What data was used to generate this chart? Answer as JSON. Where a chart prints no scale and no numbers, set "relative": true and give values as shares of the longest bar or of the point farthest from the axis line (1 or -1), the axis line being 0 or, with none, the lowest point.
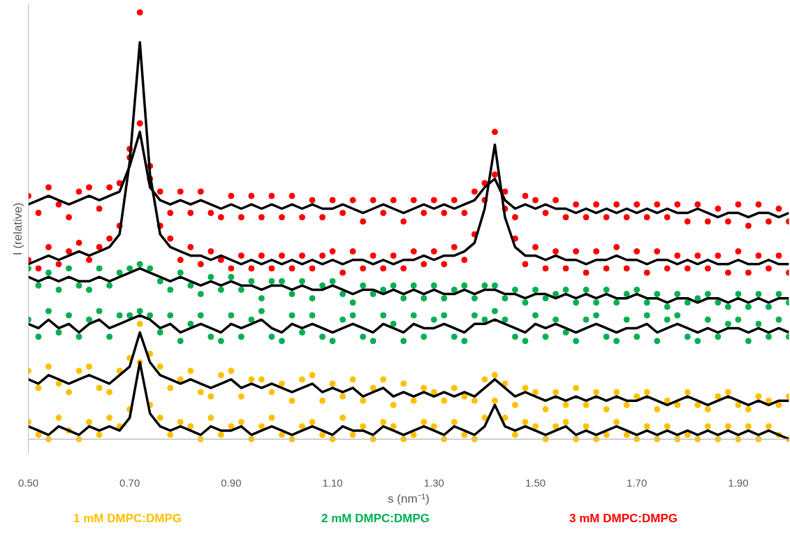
{
  "chart_data": {
    "type": "scatter",
    "xlabel": "s (nm⁻¹)",
    "ylabel": "I (relative)",
    "relative": true,
    "grid": false,
    "legend": "bottom",
    "xlim": [
      0.5,
      2.0
    ],
    "xticks": [
      {
        "value": 0.5,
        "label": "0.50"
      },
      {
        "value": 0.7,
        "label": "0.70"
      },
      {
        "value": 0.9,
        "label": "0.90"
      },
      {
        "value": 1.1,
        "label": "1.10"
      },
      {
        "value": 1.3,
        "label": "1.30"
      },
      {
        "value": 1.5,
        "label": "1.50"
      },
      {
        "value": 1.7,
        "label": "1.70"
      },
      {
        "value": 1.9,
        "label": "1.90"
      }
    ],
    "x": [
      0.5,
      0.52,
      0.54,
      0.56,
      0.58,
      0.6,
      0.62,
      0.64,
      0.66,
      0.68,
      0.7,
      0.72,
      0.74,
      0.76,
      0.78,
      0.8,
      0.82,
      0.84,
      0.86,
      0.88,
      0.9,
      0.92,
      0.94,
      0.96,
      0.98,
      1.0,
      1.02,
      1.04,
      1.06,
      1.08,
      1.1,
      1.12,
      1.14,
      1.16,
      1.18,
      1.2,
      1.22,
      1.24,
      1.26,
      1.28,
      1.3,
      1.32,
      1.34,
      1.36,
      1.38,
      1.4,
      1.42,
      1.44,
      1.46,
      1.48,
      1.5,
      1.52,
      1.54,
      1.56,
      1.58,
      1.6,
      1.62,
      1.64,
      1.66,
      1.68,
      1.7,
      1.72,
      1.74,
      1.76,
      1.78,
      1.8,
      1.82,
      1.84,
      1.86,
      1.88,
      1.9,
      1.92,
      1.94,
      1.96,
      1.98,
      2.0
    ],
    "series": [
      {
        "marker": "circle",
        "name": "1 mM DMPC:DMPG",
        "color": "#ffc000",
        "values": [
          0.16,
          0.12,
          0.17,
          0.13,
          0.11,
          0.16,
          0.17,
          0.12,
          0.11,
          0.16,
          0.19,
          0.27,
          0.2,
          0.17,
          0.12,
          0.14,
          0.16,
          0.11,
          0.1,
          0.15,
          0.16,
          0.1,
          0.14,
          0.14,
          0.11,
          0.13,
          0.09,
          0.14,
          0.15,
          0.09,
          0.13,
          0.1,
          0.14,
          0.09,
          0.12,
          0.14,
          0.08,
          0.13,
          0.09,
          0.12,
          0.11,
          0.09,
          0.12,
          0.1,
          0.09,
          0.14,
          0.15,
          0.13,
          0.08,
          0.12,
          0.11,
          0.07,
          0.11,
          0.08,
          0.12,
          0.08,
          0.11,
          0.07,
          0.11,
          0.08,
          0.1,
          0.11,
          0.07,
          0.09,
          0.08,
          0.11,
          0.08,
          0.07,
          0.1,
          0.11,
          0.08,
          0.07,
          0.1,
          0.09,
          0.08,
          0.1
        ]
      },
      {
        "marker": "circle",
        "color": "#ffc000",
        "values": [
          0.04,
          0.01,
          0.0,
          0.05,
          0.02,
          0.0,
          0.04,
          0.01,
          0.05,
          0.03,
          0.07,
          0.18,
          0.08,
          0.05,
          0.01,
          0.04,
          0.03,
          0.0,
          0.05,
          0.01,
          0.03,
          0.04,
          0.0,
          0.03,
          0.05,
          0.01,
          0.0,
          0.03,
          0.04,
          0.01,
          0.0,
          0.05,
          0.01,
          0.03,
          0.0,
          0.04,
          0.03,
          0.0,
          0.01,
          0.04,
          0.03,
          0.0,
          0.04,
          0.01,
          0.0,
          0.05,
          0.09,
          0.05,
          0.01,
          0.04,
          0.03,
          0.0,
          0.03,
          0.04,
          0.0,
          0.03,
          0.0,
          0.01,
          0.04,
          0.01,
          0.0,
          0.03,
          0.0,
          0.03,
          0.0,
          0.01,
          0.0,
          0.03,
          0.0,
          0.03,
          0.0,
          0.03,
          0.0,
          0.03,
          0.01,
          0.0
        ]
      },
      {
        "marker": "circle",
        "name": "2 mM DMPC:DMPG",
        "color": "#00b050",
        "values": [
          0.4,
          0.36,
          0.39,
          0.35,
          0.4,
          0.36,
          0.35,
          0.4,
          0.36,
          0.39,
          0.4,
          0.41,
          0.4,
          0.37,
          0.35,
          0.39,
          0.36,
          0.34,
          0.38,
          0.35,
          0.38,
          0.35,
          0.37,
          0.33,
          0.37,
          0.37,
          0.34,
          0.37,
          0.33,
          0.36,
          0.37,
          0.34,
          0.32,
          0.36,
          0.34,
          0.35,
          0.36,
          0.33,
          0.36,
          0.33,
          0.36,
          0.33,
          0.35,
          0.36,
          0.33,
          0.36,
          0.36,
          0.33,
          0.35,
          0.32,
          0.35,
          0.33,
          0.34,
          0.35,
          0.32,
          0.35,
          0.32,
          0.35,
          0.32,
          0.34,
          0.35,
          0.32,
          0.34,
          0.31,
          0.34,
          0.32,
          0.33,
          0.34,
          0.32,
          0.31,
          0.34,
          0.31,
          0.34,
          0.31,
          0.34,
          0.32
        ]
      },
      {
        "marker": "circle",
        "color": "#00b050",
        "values": [
          0.28,
          0.24,
          0.3,
          0.25,
          0.29,
          0.24,
          0.28,
          0.3,
          0.24,
          0.29,
          0.29,
          0.3,
          0.29,
          0.25,
          0.29,
          0.23,
          0.27,
          0.29,
          0.24,
          0.23,
          0.29,
          0.24,
          0.28,
          0.3,
          0.24,
          0.23,
          0.29,
          0.25,
          0.29,
          0.24,
          0.23,
          0.28,
          0.29,
          0.24,
          0.23,
          0.29,
          0.27,
          0.23,
          0.29,
          0.24,
          0.28,
          0.29,
          0.24,
          0.23,
          0.29,
          0.28,
          0.3,
          0.28,
          0.24,
          0.23,
          0.29,
          0.24,
          0.28,
          0.25,
          0.23,
          0.28,
          0.29,
          0.24,
          0.23,
          0.28,
          0.24,
          0.29,
          0.23,
          0.28,
          0.29,
          0.24,
          0.23,
          0.28,
          0.24,
          0.27,
          0.28,
          0.23,
          0.27,
          0.24,
          0.28,
          0.24
        ]
      },
      {
        "marker": "circle",
        "name": "3 mM DMPC:DMPG",
        "color": "#ff0000",
        "values": [
          0.57,
          0.53,
          0.59,
          0.55,
          0.52,
          0.58,
          0.59,
          0.54,
          0.59,
          0.6,
          0.66,
          0.74,
          0.61,
          0.58,
          0.53,
          0.58,
          0.53,
          0.58,
          0.53,
          0.52,
          0.57,
          0.52,
          0.57,
          0.52,
          0.57,
          0.52,
          0.57,
          0.52,
          0.56,
          0.52,
          0.56,
          0.53,
          0.56,
          0.51,
          0.56,
          0.53,
          0.56,
          0.51,
          0.56,
          0.53,
          0.56,
          0.53,
          0.56,
          0.53,
          0.58,
          0.6,
          0.62,
          0.58,
          0.52,
          0.57,
          0.56,
          0.53,
          0.56,
          0.52,
          0.55,
          0.52,
          0.55,
          0.52,
          0.55,
          0.52,
          0.55,
          0.52,
          0.55,
          0.52,
          0.55,
          0.51,
          0.55,
          0.51,
          0.54,
          0.51,
          0.55,
          0.5,
          0.55,
          0.51,
          0.54,
          0.51
        ]
      },
      {
        "marker": "circle",
        "color": "#ff0000",
        "values": [
          0.42,
          0.4,
          0.45,
          0.41,
          0.44,
          0.46,
          0.42,
          0.45,
          0.47,
          0.5,
          0.68,
          1.0,
          0.64,
          0.5,
          0.47,
          0.42,
          0.45,
          0.41,
          0.44,
          0.42,
          0.4,
          0.43,
          0.4,
          0.43,
          0.4,
          0.43,
          0.4,
          0.43,
          0.4,
          0.43,
          0.44,
          0.39,
          0.44,
          0.4,
          0.43,
          0.4,
          0.43,
          0.4,
          0.44,
          0.41,
          0.44,
          0.41,
          0.45,
          0.42,
          0.48,
          0.56,
          0.72,
          0.54,
          0.47,
          0.41,
          0.45,
          0.4,
          0.44,
          0.4,
          0.44,
          0.39,
          0.44,
          0.4,
          0.45,
          0.4,
          0.44,
          0.39,
          0.44,
          0.4,
          0.43,
          0.4,
          0.43,
          0.4,
          0.43,
          0.39,
          0.44,
          0.39,
          0.43,
          0.4,
          0.43,
          0.39
        ]
      },
      {
        "type": "line",
        "color": "#000000",
        "values": [
          0.14,
          0.13,
          0.15,
          0.14,
          0.13,
          0.14,
          0.15,
          0.14,
          0.13,
          0.15,
          0.17,
          0.25,
          0.18,
          0.15,
          0.14,
          0.13,
          0.14,
          0.13,
          0.12,
          0.13,
          0.14,
          0.12,
          0.13,
          0.12,
          0.13,
          0.12,
          0.11,
          0.12,
          0.13,
          0.11,
          0.12,
          0.11,
          0.12,
          0.1,
          0.11,
          0.12,
          0.1,
          0.11,
          0.1,
          0.11,
          0.1,
          0.11,
          0.1,
          0.11,
          0.1,
          0.12,
          0.14,
          0.12,
          0.1,
          0.11,
          0.1,
          0.09,
          0.1,
          0.09,
          0.1,
          0.09,
          0.1,
          0.09,
          0.1,
          0.09,
          0.09,
          0.1,
          0.09,
          0.08,
          0.09,
          0.1,
          0.09,
          0.08,
          0.09,
          0.1,
          0.09,
          0.08,
          0.09,
          0.08,
          0.09,
          0.09
        ]
      },
      {
        "type": "line",
        "color": "#000000",
        "values": [
          0.03,
          0.02,
          0.01,
          0.03,
          0.02,
          0.01,
          0.03,
          0.02,
          0.03,
          0.02,
          0.05,
          0.18,
          0.06,
          0.03,
          0.02,
          0.03,
          0.02,
          0.01,
          0.03,
          0.02,
          0.02,
          0.03,
          0.01,
          0.02,
          0.03,
          0.02,
          0.01,
          0.02,
          0.03,
          0.02,
          0.01,
          0.03,
          0.02,
          0.02,
          0.01,
          0.03,
          0.02,
          0.01,
          0.02,
          0.03,
          0.02,
          0.01,
          0.03,
          0.02,
          0.01,
          0.03,
          0.08,
          0.03,
          0.02,
          0.03,
          0.02,
          0.01,
          0.02,
          0.03,
          0.01,
          0.02,
          0.01,
          0.02,
          0.03,
          0.02,
          0.01,
          0.02,
          0.01,
          0.02,
          0.01,
          0.02,
          0.01,
          0.02,
          0.01,
          0.02,
          0.01,
          0.02,
          0.01,
          0.02,
          0.01,
          0.0
        ]
      },
      {
        "type": "line",
        "color": "#000000",
        "values": [
          0.38,
          0.37,
          0.38,
          0.37,
          0.38,
          0.37,
          0.37,
          0.38,
          0.37,
          0.38,
          0.39,
          0.4,
          0.39,
          0.38,
          0.37,
          0.38,
          0.37,
          0.36,
          0.37,
          0.36,
          0.37,
          0.36,
          0.36,
          0.35,
          0.36,
          0.36,
          0.35,
          0.36,
          0.35,
          0.35,
          0.36,
          0.35,
          0.34,
          0.35,
          0.35,
          0.34,
          0.35,
          0.34,
          0.35,
          0.34,
          0.35,
          0.34,
          0.34,
          0.35,
          0.34,
          0.35,
          0.35,
          0.34,
          0.34,
          0.33,
          0.34,
          0.34,
          0.33,
          0.34,
          0.33,
          0.34,
          0.33,
          0.34,
          0.33,
          0.33,
          0.34,
          0.33,
          0.33,
          0.32,
          0.33,
          0.33,
          0.32,
          0.33,
          0.33,
          0.32,
          0.33,
          0.32,
          0.33,
          0.32,
          0.33,
          0.33
        ]
      },
      {
        "type": "line",
        "color": "#000000",
        "values": [
          0.27,
          0.26,
          0.28,
          0.26,
          0.27,
          0.25,
          0.27,
          0.28,
          0.26,
          0.27,
          0.28,
          0.29,
          0.28,
          0.26,
          0.27,
          0.25,
          0.26,
          0.27,
          0.26,
          0.25,
          0.27,
          0.26,
          0.27,
          0.28,
          0.26,
          0.25,
          0.27,
          0.26,
          0.27,
          0.26,
          0.25,
          0.26,
          0.27,
          0.26,
          0.25,
          0.27,
          0.26,
          0.25,
          0.27,
          0.26,
          0.26,
          0.27,
          0.26,
          0.25,
          0.27,
          0.27,
          0.28,
          0.27,
          0.26,
          0.25,
          0.27,
          0.26,
          0.27,
          0.26,
          0.25,
          0.26,
          0.27,
          0.26,
          0.25,
          0.26,
          0.26,
          0.27,
          0.25,
          0.26,
          0.27,
          0.26,
          0.25,
          0.26,
          0.25,
          0.26,
          0.26,
          0.25,
          0.26,
          0.25,
          0.26,
          0.25
        ]
      },
      {
        "type": "line",
        "color": "#000000",
        "values": [
          0.55,
          0.56,
          0.57,
          0.56,
          0.55,
          0.56,
          0.57,
          0.56,
          0.57,
          0.58,
          0.64,
          0.72,
          0.59,
          0.56,
          0.55,
          0.56,
          0.55,
          0.56,
          0.55,
          0.54,
          0.55,
          0.54,
          0.55,
          0.54,
          0.55,
          0.54,
          0.55,
          0.54,
          0.55,
          0.54,
          0.54,
          0.55,
          0.54,
          0.53,
          0.54,
          0.55,
          0.54,
          0.53,
          0.54,
          0.55,
          0.54,
          0.55,
          0.54,
          0.55,
          0.56,
          0.59,
          0.61,
          0.56,
          0.54,
          0.55,
          0.54,
          0.55,
          0.54,
          0.54,
          0.53,
          0.54,
          0.53,
          0.54,
          0.53,
          0.54,
          0.53,
          0.54,
          0.53,
          0.54,
          0.53,
          0.53,
          0.54,
          0.53,
          0.52,
          0.53,
          0.53,
          0.52,
          0.53,
          0.53,
          0.52,
          0.53
        ]
      },
      {
        "type": "line",
        "color": "#000000",
        "values": [
          0.41,
          0.42,
          0.43,
          0.42,
          0.43,
          0.44,
          0.43,
          0.44,
          0.45,
          0.48,
          0.65,
          0.93,
          0.62,
          0.48,
          0.45,
          0.44,
          0.43,
          0.43,
          0.42,
          0.43,
          0.42,
          0.41,
          0.42,
          0.41,
          0.42,
          0.41,
          0.42,
          0.41,
          0.42,
          0.41,
          0.42,
          0.41,
          0.42,
          0.42,
          0.41,
          0.42,
          0.41,
          0.42,
          0.42,
          0.43,
          0.42,
          0.43,
          0.43,
          0.44,
          0.46,
          0.54,
          0.69,
          0.52,
          0.45,
          0.43,
          0.43,
          0.42,
          0.43,
          0.42,
          0.42,
          0.41,
          0.42,
          0.42,
          0.43,
          0.42,
          0.42,
          0.41,
          0.42,
          0.42,
          0.41,
          0.42,
          0.41,
          0.42,
          0.41,
          0.41,
          0.42,
          0.41,
          0.41,
          0.42,
          0.41,
          0.41
        ]
      }
    ]
  }
}
